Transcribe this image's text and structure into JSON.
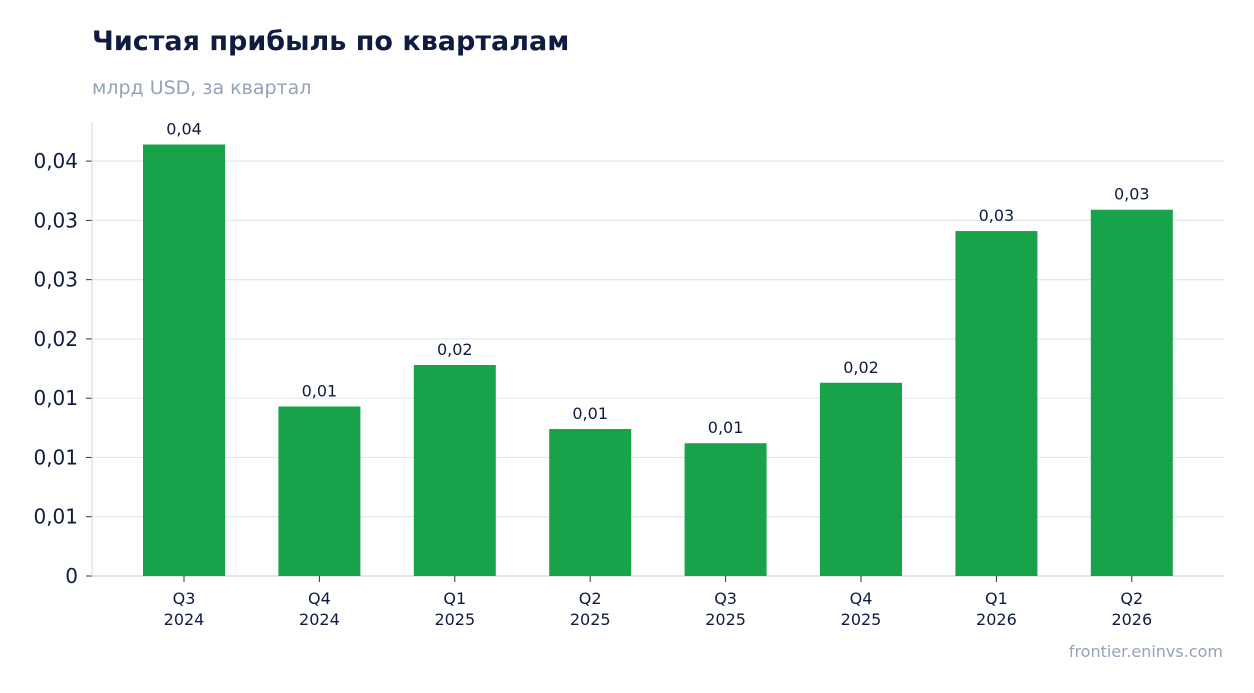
{
  "title": "Чистая прибыль по кварталам",
  "subtitle": "млрд USD, за квартал",
  "source": "frontier.eninvs.com",
  "colors": {
    "bar": "#18a34a",
    "grid": "#e2e6ef",
    "axis": "#cfd4dd",
    "text": "#0f1c3f",
    "muted": "#94a3b8"
  },
  "chart_data": {
    "type": "bar",
    "categories": [
      [
        "Q3",
        "2024"
      ],
      [
        "Q4",
        "2024"
      ],
      [
        "Q1",
        "2025"
      ],
      [
        "Q2",
        "2025"
      ],
      [
        "Q3",
        "2025"
      ],
      [
        "Q4",
        "2025"
      ],
      [
        "Q1",
        "2026"
      ],
      [
        "Q2",
        "2026"
      ]
    ],
    "values": [
      0.0364,
      0.0143,
      0.0178,
      0.0124,
      0.0112,
      0.0163,
      0.0291,
      0.0309
    ],
    "data_labels": [
      "0,04",
      "0,01",
      "0,02",
      "0,01",
      "0,01",
      "0,02",
      "0,03",
      "0,03"
    ],
    "yticks": [
      0,
      0.005,
      0.01,
      0.015,
      0.02,
      0.025,
      0.03,
      0.035
    ],
    "ytick_labels": [
      "0",
      "0,01",
      "0,01",
      "0,01",
      "0,02",
      "0,03",
      "0,03",
      "0,04"
    ],
    "ylim": [
      0,
      0.0383
    ],
    "grid": true,
    "legend": "none"
  }
}
